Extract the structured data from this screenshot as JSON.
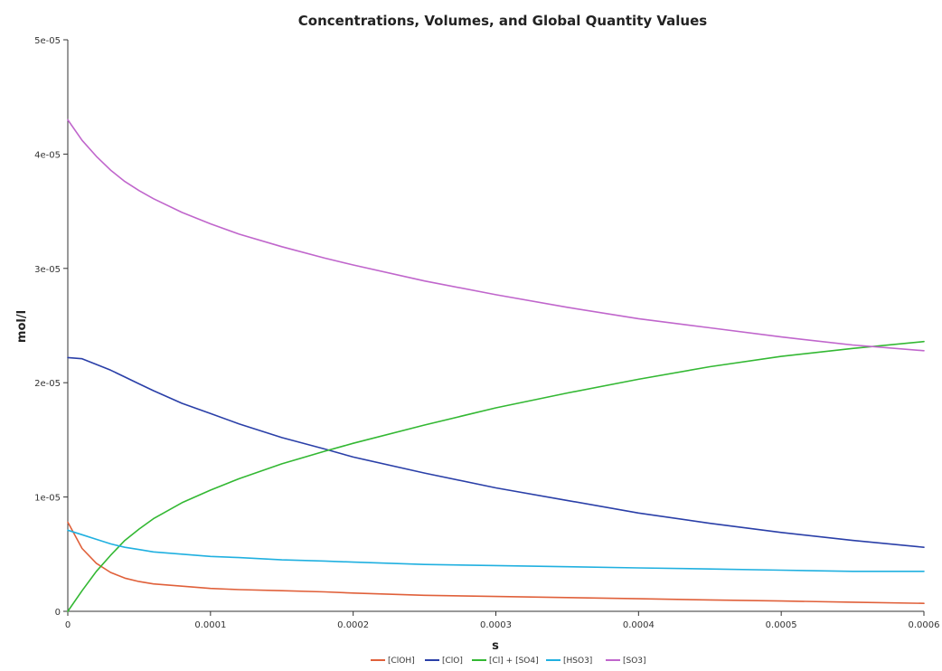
{
  "chart_data": {
    "type": "line",
    "title": "Concentrations, Volumes, and Global Quantity Values",
    "xlabel": "s",
    "ylabel": "mol/l",
    "xlim": [
      0,
      0.0006
    ],
    "ylim": [
      0,
      5e-05
    ],
    "x_ticks": [
      0,
      0.0001,
      0.0002,
      0.0003,
      0.0004,
      0.0005,
      0.0006
    ],
    "x_tick_labels": [
      "0",
      "0.0001",
      "0.0002",
      "0.0003",
      "0.0004",
      "0.0005",
      "0.0006"
    ],
    "y_ticks": [
      0,
      1e-05,
      2e-05,
      3e-05,
      4e-05,
      5e-05
    ],
    "y_tick_labels": [
      "0",
      "1e-05",
      "2e-05",
      "3e-05",
      "4e-05",
      "5e-05"
    ],
    "grid": false,
    "legend_position": "bottom",
    "x": [
      0,
      1e-05,
      2e-05,
      3e-05,
      4e-05,
      5e-05,
      6e-05,
      8e-05,
      0.0001,
      0.00012,
      0.00015,
      0.00018,
      0.0002,
      0.00025,
      0.0003,
      0.00035,
      0.0004,
      0.00045,
      0.0005,
      0.00055,
      0.0006
    ],
    "series": [
      {
        "name": "[ClOH]",
        "color": "#e0603a",
        "values": [
          7.8e-06,
          5.5e-06,
          4.2e-06,
          3.4e-06,
          2.9e-06,
          2.6e-06,
          2.4e-06,
          2.2e-06,
          2e-06,
          1.9e-06,
          1.8e-06,
          1.7e-06,
          1.6e-06,
          1.4e-06,
          1.3e-06,
          1.2e-06,
          1.1e-06,
          1e-06,
          9e-07,
          8e-07,
          7e-07
        ]
      },
      {
        "name": "[ClO]",
        "color": "#2a3fa8",
        "values": [
          2.22e-05,
          2.21e-05,
          2.16e-05,
          2.11e-05,
          2.05e-05,
          1.99e-05,
          1.93e-05,
          1.82e-05,
          1.73e-05,
          1.64e-05,
          1.52e-05,
          1.42e-05,
          1.35e-05,
          1.21e-05,
          1.08e-05,
          9.7e-06,
          8.6e-06,
          7.7e-06,
          6.9e-06,
          6.2e-06,
          5.6e-06
        ]
      },
      {
        "name": "[Cl] + [SO4]",
        "color": "#33b833",
        "values": [
          0,
          1.8e-06,
          3.5e-06,
          4.9e-06,
          6.2e-06,
          7.2e-06,
          8.1e-06,
          9.5e-06,
          1.06e-05,
          1.16e-05,
          1.29e-05,
          1.4e-05,
          1.47e-05,
          1.63e-05,
          1.78e-05,
          1.91e-05,
          2.03e-05,
          2.14e-05,
          2.23e-05,
          2.3e-05,
          2.36e-05
        ]
      },
      {
        "name": "[HSO3]",
        "color": "#20b0e0",
        "values": [
          7.1e-06,
          6.7e-06,
          6.3e-06,
          5.9e-06,
          5.6e-06,
          5.4e-06,
          5.2e-06,
          5e-06,
          4.8e-06,
          4.7e-06,
          4.5e-06,
          4.4e-06,
          4.3e-06,
          4.1e-06,
          4e-06,
          3.9e-06,
          3.8e-06,
          3.7e-06,
          3.6e-06,
          3.5e-06,
          3.5e-06
        ]
      },
      {
        "name": "[SO3]",
        "color": "#c066cc",
        "values": [
          4.3e-05,
          4.12e-05,
          3.98e-05,
          3.86e-05,
          3.76e-05,
          3.68e-05,
          3.61e-05,
          3.49e-05,
          3.39e-05,
          3.3e-05,
          3.19e-05,
          3.09e-05,
          3.03e-05,
          2.89e-05,
          2.77e-05,
          2.66e-05,
          2.56e-05,
          2.48e-05,
          2.4e-05,
          2.33e-05,
          2.28e-05
        ]
      }
    ]
  }
}
